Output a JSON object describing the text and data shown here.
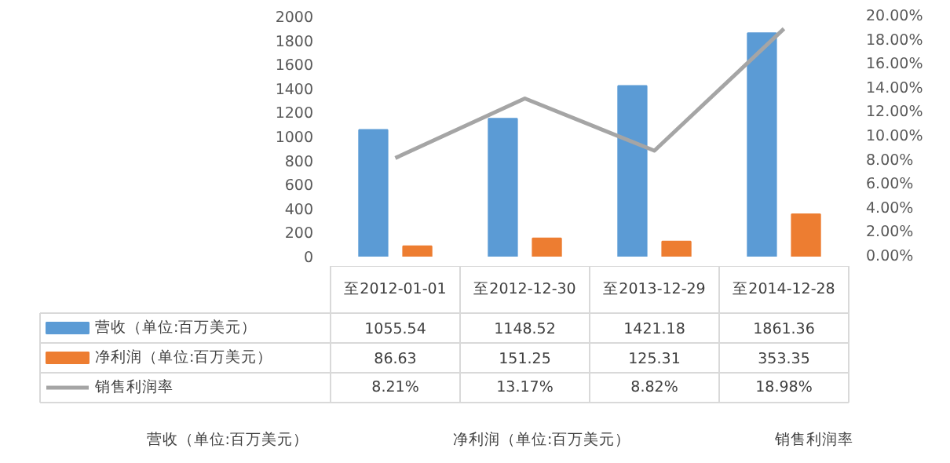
{
  "chart_data": {
    "type": "bar",
    "categories": [
      "至2012-01-01",
      "至2012-12-30",
      "至2013-12-29",
      "至2014-12-28"
    ],
    "series": [
      {
        "name": "营收（单位:百万美元）",
        "color": "#5b9bd5",
        "values": [
          1055.54,
          1148.52,
          1421.18,
          1861.36
        ],
        "value_labels": [
          "1055.54",
          "1148.52",
          "1421.18",
          "1861.36"
        ]
      },
      {
        "name": "净利润（单位:百万美元）",
        "color": "#ed7d31",
        "values": [
          86.63,
          151.25,
          125.31,
          353.35
        ],
        "value_labels": [
          "86.63",
          "151.25",
          "125.31",
          "353.35"
        ]
      },
      {
        "name": "销售利润率",
        "type": "line",
        "axis": "y2",
        "color": "#a5a5a5",
        "values": [
          8.21,
          13.17,
          8.82,
          18.98
        ],
        "value_labels": [
          "8.21%",
          "13.17%",
          "8.82%",
          "18.98%"
        ]
      }
    ],
    "ylim": [
      0,
      2000
    ],
    "yticks": [
      0,
      200,
      400,
      600,
      800,
      1000,
      1200,
      1400,
      1600,
      1800,
      2000
    ],
    "y2lim": [
      0,
      20
    ],
    "y2ticks": [
      {
        "value": 0,
        "label": "0.00%"
      },
      {
        "value": 2,
        "label": "2.00%"
      },
      {
        "value": 4,
        "label": "4.00%"
      },
      {
        "value": 6,
        "label": "6.00%"
      },
      {
        "value": 8,
        "label": "8.00%"
      },
      {
        "value": 10,
        "label": "10.00%"
      },
      {
        "value": 12,
        "label": "12.00%"
      },
      {
        "value": 14,
        "label": "14.00%"
      },
      {
        "value": 16,
        "label": "16.00%"
      },
      {
        "value": 18,
        "label": "18.00%"
      },
      {
        "value": 20,
        "label": "20.00%"
      }
    ],
    "legend": "bottom"
  }
}
